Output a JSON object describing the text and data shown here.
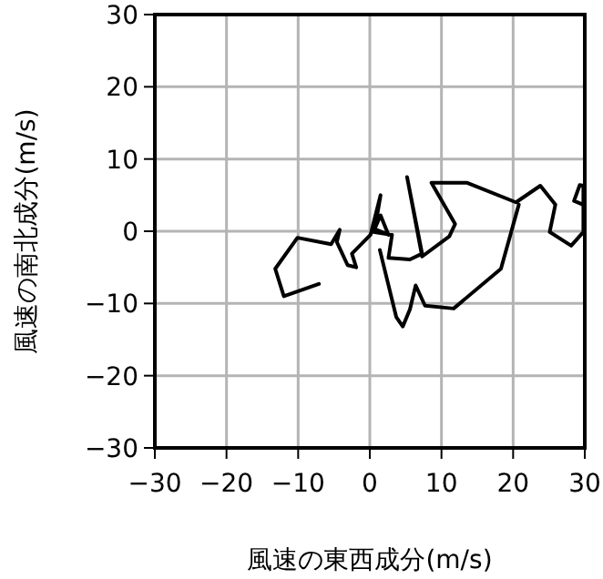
{
  "chart_data": {
    "type": "line",
    "xlabel": "風速の東西成分(m/s)",
    "ylabel": "風速の南北成分(m/s)",
    "xlim": [
      -30,
      30
    ],
    "ylim": [
      -30,
      30
    ],
    "xticks": [
      -30,
      -20,
      -10,
      0,
      10,
      20,
      30
    ],
    "yticks": [
      -30,
      -20,
      -10,
      0,
      10,
      20,
      30
    ],
    "grid": true,
    "series": [
      {
        "color": "#000000",
        "x": [
          -7.1,
          -12.0,
          -13.2,
          -10.1,
          -5.4,
          -4.2,
          -4.6,
          -3.1,
          -1.9,
          -2.5,
          0.1,
          1.5,
          0.7,
          2.6,
          1.5,
          0.5,
          3.1,
          2.6,
          5.6,
          7.3,
          5.2,
          7.3,
          11.1,
          11.9,
          8.6,
          13.6,
          20.4,
          23.8,
          25.9,
          25.1,
          28.1,
          29.8,
          29.8,
          29.3,
          28.5,
          29.7,
          null,
          1.4,
          3.7,
          4.6,
          5.6,
          6.4,
          7.7,
          11.7,
          18.3,
          20.8
        ],
        "values": [
          -7.3,
          -9.0,
          -5.2,
          -0.9,
          -1.8,
          0.2,
          -1.5,
          -4.7,
          -5.0,
          -3.1,
          -0.5,
          5.0,
          0.3,
          -0.5,
          2.2,
          -0.1,
          -0.5,
          -3.7,
          -3.9,
          -3.1,
          7.5,
          -3.5,
          -0.7,
          1.0,
          6.7,
          6.7,
          4.0,
          6.3,
          3.7,
          -0.1,
          -2.0,
          -0.1,
          6.3,
          6.4,
          4.2,
          3.7,
          null,
          -2.6,
          -11.9,
          -13.2,
          -10.8,
          -7.5,
          -10.3,
          -10.7,
          -5.2,
          3.7
        ]
      }
    ]
  }
}
